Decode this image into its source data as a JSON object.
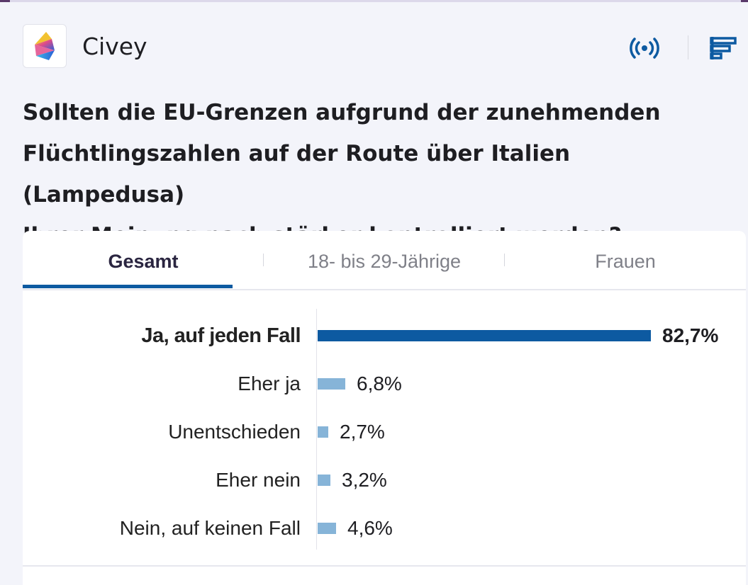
{
  "app": {
    "name": "Civey"
  },
  "icons": {
    "logo": "civey-logo-icon",
    "live": "broadcast-icon",
    "menu": "menu-bars-icon"
  },
  "colors": {
    "accent": "#0d5aa1",
    "bar_secondary": "#86b4d8"
  },
  "question": "Sollten die EU-Grenzen aufgrund der zunehmenden Flüchtlingszahlen auf der Route über Italien (Lampedusa) Ihrer Meinung nach stärker kontrolliert werden?",
  "question_lines": [
    "Sollten die EU-Grenzen aufgrund der zunehmenden",
    "Flüchtlingszahlen auf der Route über Italien (Lampedusa)",
    "Ihrer Meinung nach stärker kontrolliert werden?"
  ],
  "tabs": [
    {
      "label": "Gesamt",
      "active": true
    },
    {
      "label": "18- bis 29-Jährige",
      "active": false
    },
    {
      "label": "Frauen",
      "active": false
    }
  ],
  "chart_data": {
    "type": "bar",
    "orientation": "horizontal",
    "categories": [
      "Ja, auf jeden Fall",
      "Eher ja",
      "Unentschieden",
      "Eher nein",
      "Nein, auf keinen Fall"
    ],
    "values": [
      82.7,
      6.8,
      2.7,
      3.2,
      4.6
    ],
    "value_labels": [
      "82,7%",
      "6,8%",
      "2,7%",
      "3,2%",
      "4,6%"
    ],
    "xlim": [
      0,
      82.7
    ],
    "grid": false
  }
}
